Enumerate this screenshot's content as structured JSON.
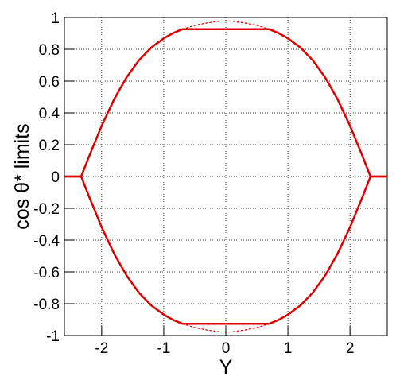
{
  "chart_data": {
    "type": "line",
    "x_label": "Y",
    "y_label": "cos θ* limits",
    "xlim": [
      -2.6,
      2.6
    ],
    "ylim": [
      -1,
      1
    ],
    "xticks": [
      -2,
      -1,
      0,
      1,
      2
    ],
    "yticks": [
      -1,
      -0.8,
      -0.6,
      -0.4,
      -0.2,
      0,
      0.2,
      0.4,
      0.6,
      0.8,
      1
    ],
    "grid": true,
    "series": [
      {
        "color": "#e00000",
        "style": "solid",
        "x": [
          -2.6,
          -2.33,
          -2.2,
          -2.0,
          -1.8,
          -1.6,
          -1.4,
          -1.2,
          -1.0,
          -0.85,
          -0.7,
          0.7,
          0.85,
          1.0,
          1.2,
          1.4,
          1.6,
          1.8,
          2.0,
          2.2,
          2.33,
          2.6
        ],
        "values": [
          0,
          0,
          0.129,
          0.319,
          0.485,
          0.623,
          0.731,
          0.811,
          0.869,
          0.902,
          0.926,
          0.926,
          0.902,
          0.869,
          0.811,
          0.731,
          0.623,
          0.485,
          0.319,
          0.129,
          0,
          0
        ]
      },
      {
        "color": "#e00000",
        "style": "solid",
        "x": [
          -2.6,
          -2.33,
          -2.2,
          -2.0,
          -1.8,
          -1.6,
          -1.4,
          -1.2,
          -1.0,
          -0.85,
          -0.7,
          0.7,
          0.85,
          1.0,
          1.2,
          1.4,
          1.6,
          1.8,
          2.0,
          2.2,
          2.33,
          2.6
        ],
        "values": [
          0,
          0,
          -0.129,
          -0.319,
          -0.485,
          -0.623,
          -0.731,
          -0.811,
          -0.869,
          -0.902,
          -0.926,
          -0.926,
          -0.902,
          -0.869,
          -0.811,
          -0.731,
          -0.623,
          -0.485,
          -0.319,
          -0.129,
          0,
          0
        ]
      },
      {
        "color": "#e00000",
        "style": "dashed",
        "x": [
          -0.7,
          -0.5,
          -0.3,
          0,
          0.3,
          0.5,
          0.7
        ],
        "values": [
          0.926,
          0.95,
          0.966,
          0.981,
          0.966,
          0.95,
          0.926
        ]
      },
      {
        "color": "#e00000",
        "style": "dashed",
        "x": [
          -0.7,
          -0.5,
          -0.3,
          0,
          0.3,
          0.5,
          0.7
        ],
        "values": [
          -0.926,
          -0.95,
          -0.966,
          -0.981,
          -0.966,
          -0.95,
          -0.926
        ]
      }
    ]
  }
}
